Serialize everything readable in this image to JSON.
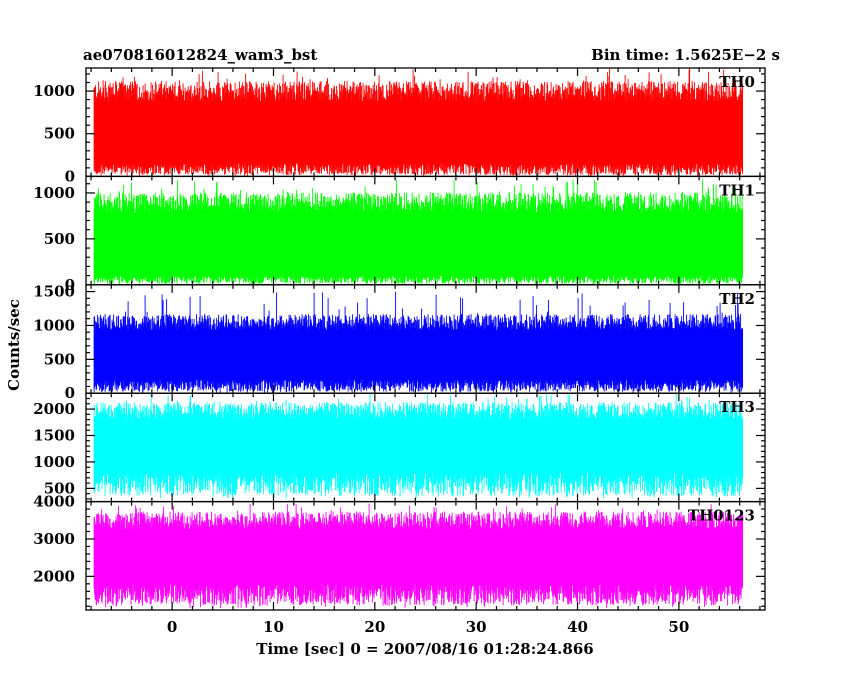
{
  "chart_data": {
    "type": "line",
    "title": "ae070816012824_wam3_bst",
    "subtitle": "Bin time: 1.5625E−2 s",
    "xlabel": "Time [sec] 0 = 2007/08/16 01:28:24.866",
    "ylabel": "Counts/sec",
    "xlim": [
      -8.5,
      58.5
    ],
    "data_x_range": [
      -7.7,
      56.3
    ],
    "x_ticks": [
      0,
      10,
      20,
      30,
      40,
      50
    ],
    "grid": false,
    "panels": [
      {
        "name": "TH0",
        "color": "#ff0000",
        "ylim": [
          0,
          1270
        ],
        "y_ticks": [
          0,
          500,
          1000
        ],
        "y_tick_labels": [
          "0",
          "500",
          "1000"
        ],
        "typical_range": [
          150,
          950
        ],
        "peak_max": 1270,
        "min": 0
      },
      {
        "name": "TH1",
        "color": "#00ff00",
        "ylim": [
          0,
          1180
        ],
        "y_ticks": [
          0,
          500,
          1000
        ],
        "y_tick_labels": [
          "0",
          "500",
          "1000"
        ],
        "typical_range": [
          100,
          850
        ],
        "peak_max": 1150,
        "min": 0
      },
      {
        "name": "TH2",
        "color": "#0000ff",
        "ylim": [
          0,
          1600
        ],
        "y_ticks": [
          0,
          500,
          1000,
          1500
        ],
        "y_tick_labels": [
          "0",
          "500",
          "1000",
          "1500"
        ],
        "typical_range": [
          200,
          1000
        ],
        "peak_max": 1500,
        "min": 0
      },
      {
        "name": "TH3",
        "color": "#00ffff",
        "ylim": [
          250,
          2300
        ],
        "y_ticks": [
          500,
          1000,
          1500,
          2000
        ],
        "y_tick_labels": [
          "500",
          "1000",
          "1500",
          "2000"
        ],
        "typical_range": [
          800,
          1900
        ],
        "peak_max": 2300,
        "min": 300
      },
      {
        "name": "TH0123",
        "color": "#ff00ff",
        "ylim": [
          1100,
          4000
        ],
        "y_ticks": [
          2000,
          3000,
          4000
        ],
        "y_tick_labels": [
          "2000",
          "3000",
          "4000"
        ],
        "typical_range": [
          1800,
          3400
        ],
        "peak_max": 3950,
        "min": 1150
      }
    ]
  }
}
